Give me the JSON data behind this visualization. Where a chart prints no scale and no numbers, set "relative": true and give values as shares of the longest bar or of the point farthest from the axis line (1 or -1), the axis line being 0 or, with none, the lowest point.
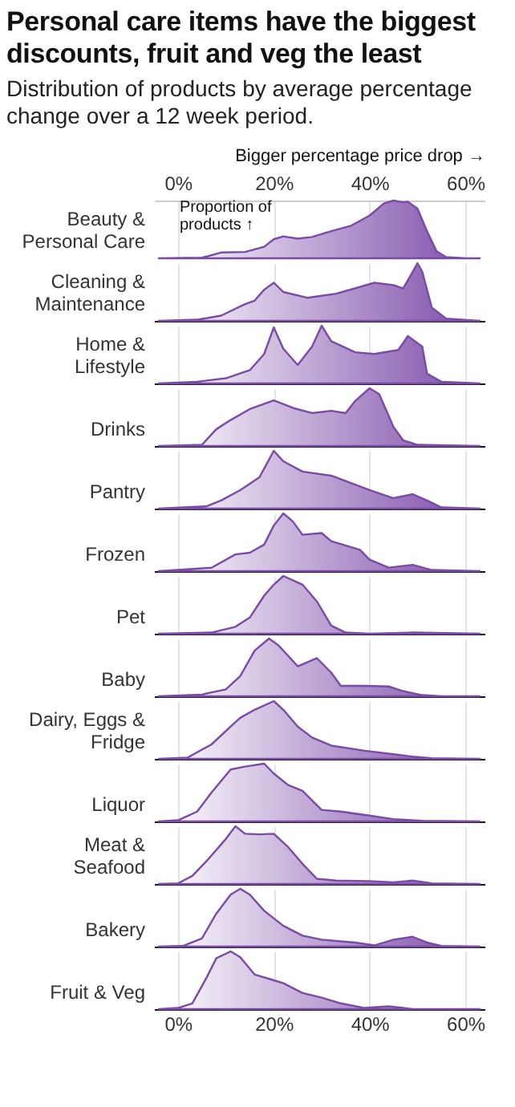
{
  "chart_data": [
    {
      "type": "area",
      "relative": true,
      "title": "Personal care items have the biggest discounts, fruit and veg the least",
      "subtitle": "Distribution of products by average percentage change over a 12 week period.",
      "xlabel": "Bigger percentage price drop →",
      "annotations": [
        "Proportion of products ↑"
      ],
      "ylabel": "Beauty & Personal Care",
      "color": "#7b4aa8",
      "grid": "x",
      "xlim": [
        -5,
        64
      ],
      "xticks": [
        {
          "value": 0,
          "label": "0%"
        },
        {
          "value": 20,
          "label": "20%"
        },
        {
          "value": 40,
          "label": "40%"
        },
        {
          "value": 60,
          "label": "60%"
        }
      ],
      "x": [
        -4,
        5,
        9,
        14,
        18,
        20,
        22,
        25,
        28,
        32,
        36,
        40,
        43,
        45,
        47,
        48,
        50,
        52,
        54,
        56,
        60,
        63
      ],
      "values": [
        0,
        0.01,
        0.1,
        0.11,
        0.2,
        0.33,
        0.38,
        0.34,
        0.37,
        0.47,
        0.56,
        0.74,
        0.95,
        1,
        0.97,
        0.98,
        0.86,
        0.47,
        0.12,
        0.02,
        0,
        0
      ]
    },
    {
      "type": "area",
      "relative": true,
      "ylabel": "Cleaning & Maintenance",
      "color": "#7b4aa8",
      "grid": "x",
      "tick_labels": false,
      "xlim": [
        -5,
        64
      ],
      "xticks": [
        0,
        20,
        40,
        60
      ],
      "x": [
        -4,
        4,
        9,
        14,
        16,
        18,
        20,
        22,
        27,
        33,
        41,
        45,
        47,
        49,
        50,
        51,
        53,
        56,
        63
      ],
      "values": [
        0,
        0.02,
        0.09,
        0.29,
        0.35,
        0.54,
        0.66,
        0.5,
        0.4,
        0.47,
        0.66,
        0.62,
        0.56,
        0.85,
        1,
        0.85,
        0.23,
        0.04,
        0
      ]
    },
    {
      "type": "area",
      "relative": true,
      "ylabel": "Home & Lifestyle",
      "color": "#7b4aa8",
      "grid": "x",
      "tick_labels": false,
      "xlim": [
        -5,
        64
      ],
      "xticks": [
        0,
        20,
        40,
        60
      ],
      "x": [
        -4,
        4,
        10,
        15,
        18,
        20,
        22,
        25,
        28,
        30,
        32,
        37,
        41,
        46,
        48,
        51,
        52,
        55,
        63
      ],
      "values": [
        0,
        0.03,
        0.09,
        0.23,
        0.51,
        0.97,
        0.6,
        0.32,
        0.64,
        1,
        0.73,
        0.54,
        0.51,
        0.58,
        0.82,
        0.64,
        0.17,
        0.03,
        0
      ]
    },
    {
      "type": "area",
      "relative": true,
      "ylabel": "Drinks",
      "color": "#7b4aa8",
      "grid": "x",
      "tick_labels": false,
      "xlim": [
        -5,
        64
      ],
      "xticks": [
        0,
        20,
        40,
        60
      ],
      "x": [
        -4,
        5,
        8,
        11,
        15,
        20,
        24,
        28,
        32,
        35,
        37,
        40,
        42,
        45,
        47,
        50,
        63
      ],
      "values": [
        0,
        0.02,
        0.29,
        0.45,
        0.64,
        0.79,
        0.66,
        0.57,
        0.61,
        0.57,
        0.78,
        1,
        0.9,
        0.33,
        0.1,
        0.02,
        0
      ]
    },
    {
      "type": "area",
      "relative": true,
      "ylabel": "Pantry",
      "color": "#7b4aa8",
      "grid": "x",
      "tick_labels": false,
      "xlim": [
        -5,
        64
      ],
      "xticks": [
        0,
        20,
        40,
        60
      ],
      "x": [
        -4,
        6,
        9,
        13,
        17,
        20,
        22,
        26,
        32,
        40,
        45,
        49,
        52,
        55,
        63
      ],
      "values": [
        0,
        0.04,
        0.14,
        0.32,
        0.54,
        1,
        0.82,
        0.64,
        0.57,
        0.32,
        0.18,
        0.25,
        0.14,
        0.02,
        0
      ]
    },
    {
      "type": "area",
      "relative": true,
      "ylabel": "Frozen",
      "color": "#7b4aa8",
      "grid": "x",
      "tick_labels": false,
      "xlim": [
        -5,
        64
      ],
      "xticks": [
        0,
        20,
        40,
        60
      ],
      "x": [
        -4,
        7,
        12,
        15,
        18,
        20,
        22,
        24,
        26,
        30,
        32,
        38,
        40,
        44,
        49,
        53,
        63
      ],
      "values": [
        0,
        0.06,
        0.29,
        0.32,
        0.46,
        0.79,
        1,
        0.86,
        0.63,
        0.66,
        0.52,
        0.37,
        0.2,
        0.06,
        0.11,
        0.02,
        0
      ]
    },
    {
      "type": "area",
      "relative": true,
      "ylabel": "Pet",
      "color": "#7b4aa8",
      "grid": "x",
      "tick_labels": false,
      "xlim": [
        -5,
        64
      ],
      "xticks": [
        0,
        20,
        40,
        60
      ],
      "x": [
        -4,
        7,
        12,
        15,
        18,
        20,
        22,
        26,
        29,
        32,
        35,
        40,
        49,
        63
      ],
      "values": [
        0,
        0.02,
        0.12,
        0.28,
        0.66,
        0.85,
        1,
        0.85,
        0.56,
        0.14,
        0.02,
        0,
        0.02,
        0
      ]
    },
    {
      "type": "area",
      "relative": true,
      "ylabel": "Baby",
      "color": "#7b4aa8",
      "grid": "x",
      "tick_labels": false,
      "xlim": [
        -5,
        64
      ],
      "xticks": [
        0,
        20,
        40,
        60
      ],
      "x": [
        -4,
        5,
        10,
        13,
        16,
        19,
        21,
        25,
        27,
        29,
        32,
        34,
        39,
        44,
        47,
        51,
        55,
        63
      ],
      "values": [
        0,
        0.03,
        0.12,
        0.35,
        0.79,
        1,
        0.88,
        0.52,
        0.59,
        0.66,
        0.41,
        0.18,
        0.18,
        0.17,
        0.09,
        0.02,
        0,
        0
      ]
    },
    {
      "type": "area",
      "relative": true,
      "ylabel": "Dairy, Eggs & Fridge",
      "color": "#7b4aa8",
      "grid": "x",
      "tick_labels": false,
      "xlim": [
        -5,
        64
      ],
      "xticks": [
        0,
        20,
        40,
        60
      ],
      "x": [
        -4,
        2,
        7,
        11,
        13,
        16,
        20,
        22,
        25,
        28,
        32,
        39,
        45,
        49,
        53,
        63
      ],
      "values": [
        0,
        0.02,
        0.25,
        0.56,
        0.71,
        0.85,
        1,
        0.85,
        0.56,
        0.37,
        0.23,
        0.14,
        0.08,
        0.04,
        0.01,
        0
      ]
    },
    {
      "type": "area",
      "relative": true,
      "ylabel": "Liquor",
      "color": "#7b4aa8",
      "grid": "x",
      "tick_labels": false,
      "xlim": [
        -5,
        64
      ],
      "xticks": [
        0,
        20,
        40,
        60
      ],
      "x": [
        -4,
        0,
        4,
        7,
        11,
        14,
        18,
        20,
        23,
        26,
        30,
        34,
        40,
        45,
        51,
        63
      ],
      "values": [
        0,
        0.02,
        0.17,
        0.5,
        0.9,
        0.95,
        1,
        0.83,
        0.63,
        0.53,
        0.2,
        0.17,
        0.1,
        0.04,
        0.01,
        0
      ]
    },
    {
      "type": "area",
      "relative": true,
      "ylabel": "Meat & Seafood",
      "color": "#7b4aa8",
      "grid": "x",
      "tick_labels": false,
      "xlim": [
        -5,
        64
      ],
      "xticks": [
        0,
        20,
        40,
        60
      ],
      "x": [
        -4,
        0,
        3,
        6,
        10,
        12,
        14,
        17,
        20,
        23,
        26,
        29,
        33,
        40,
        45,
        49,
        53,
        63
      ],
      "values": [
        0,
        0.01,
        0.14,
        0.4,
        0.78,
        1,
        0.87,
        0.86,
        0.87,
        0.64,
        0.35,
        0.09,
        0.06,
        0.05,
        0.03,
        0.06,
        0.01,
        0
      ]
    },
    {
      "type": "area",
      "relative": true,
      "ylabel": "Bakery",
      "color": "#7b4aa8",
      "grid": "x",
      "tick_labels": false,
      "xlim": [
        -5,
        64
      ],
      "xticks": [
        0,
        20,
        40,
        60
      ],
      "x": [
        -4,
        1,
        5,
        8,
        11,
        13,
        15,
        18,
        22,
        26,
        30,
        37,
        41,
        45,
        49,
        52,
        55,
        63
      ],
      "values": [
        0,
        0.01,
        0.14,
        0.57,
        0.9,
        1,
        0.9,
        0.62,
        0.36,
        0.19,
        0.12,
        0.07,
        0.02,
        0.12,
        0.17,
        0.07,
        0.01,
        0
      ]
    },
    {
      "type": "area",
      "relative": true,
      "ylabel": "Fruit & Veg",
      "color": "#7b4aa8",
      "grid": "x",
      "xlim": [
        -5,
        64
      ],
      "xticks": [
        {
          "value": 0,
          "label": "0%"
        },
        {
          "value": 20,
          "label": "20%"
        },
        {
          "value": 40,
          "label": "40%"
        },
        {
          "value": 60,
          "label": "60%"
        }
      ],
      "x": [
        -4,
        0,
        3,
        6,
        8,
        11,
        13,
        16,
        20,
        22,
        26,
        30,
        34,
        39,
        44,
        47,
        49,
        63
      ],
      "values": [
        0,
        0.02,
        0.1,
        0.55,
        0.88,
        1,
        0.9,
        0.6,
        0.5,
        0.45,
        0.28,
        0.2,
        0.1,
        0.02,
        0.05,
        0.02,
        0,
        0
      ]
    }
  ]
}
